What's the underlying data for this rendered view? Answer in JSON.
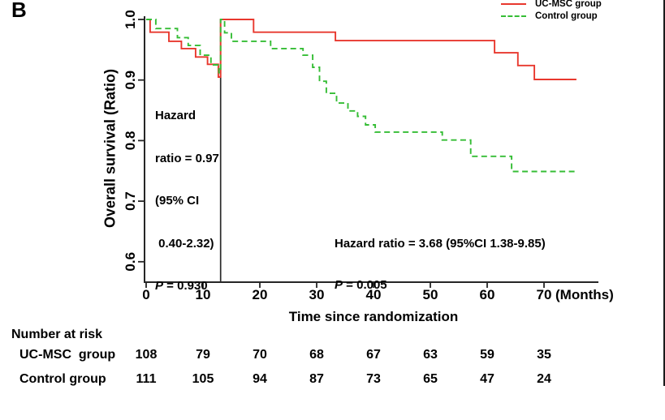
{
  "panel": {
    "label": "B"
  },
  "chart_data": {
    "type": "line",
    "subtype": "kaplan-meier-step",
    "title": "",
    "xlabel": "Time since randomization",
    "x_unit": "(Months)",
    "ylabel": "Overall survival (Ratio)",
    "xticks": [
      0,
      10,
      20,
      30,
      40,
      50,
      60,
      70
    ],
    "yticks": [
      1.0,
      0.9,
      0.8,
      0.7,
      0.6
    ],
    "ytick_labels": [
      "1.0",
      "0.9",
      "0.8",
      "0.7",
      "0.6"
    ],
    "xlim": [
      0,
      79
    ],
    "ylim": [
      0.565,
      1.0
    ],
    "grid": false,
    "legend_position": "top-right",
    "landmark_month": 13.1,
    "series": [
      {
        "name": "UC-MSC group",
        "color": "#e8382e",
        "line_style": "solid",
        "points": [
          [
            0,
            1.0
          ],
          [
            0.7,
            0.979
          ],
          [
            4.0,
            0.964
          ],
          [
            6.2,
            0.952
          ],
          [
            8.7,
            0.938
          ],
          [
            10.8,
            0.926
          ],
          [
            12.7,
            0.905
          ],
          [
            13.1,
            1.0
          ],
          [
            18.9,
            0.979
          ],
          [
            33.3,
            0.965
          ],
          [
            61.3,
            0.945
          ],
          [
            65.4,
            0.924
          ],
          [
            68.3,
            0.901
          ],
          [
            75.7,
            0.901
          ]
        ]
      },
      {
        "name": "Control group",
        "color": "#35bd35",
        "line_style": "dashed",
        "points": [
          [
            0,
            1.0
          ],
          [
            1.7,
            0.985
          ],
          [
            5.5,
            0.97
          ],
          [
            7.4,
            0.957
          ],
          [
            9.5,
            0.941
          ],
          [
            11.4,
            0.925
          ],
          [
            12.8,
            0.912
          ],
          [
            13.1,
            1.0
          ],
          [
            13.8,
            0.978
          ],
          [
            15.0,
            0.964
          ],
          [
            21.9,
            0.952
          ],
          [
            27.6,
            0.941
          ],
          [
            29.3,
            0.921
          ],
          [
            30.5,
            0.898
          ],
          [
            31.7,
            0.878
          ],
          [
            33.5,
            0.862
          ],
          [
            35.5,
            0.849
          ],
          [
            37.2,
            0.84
          ],
          [
            38.6,
            0.826
          ],
          [
            40.3,
            0.814
          ],
          [
            52.1,
            0.801
          ],
          [
            57.1,
            0.774
          ],
          [
            64.3,
            0.749
          ],
          [
            75.5,
            0.749
          ]
        ]
      }
    ],
    "annotations": [
      {
        "lines": [
          "Hazard",
          "ratio = 0.97",
          "(95% CI",
          " 0.40-2.32)"
        ],
        "p_label": "P",
        "p_value": " = 0.930"
      },
      {
        "line": "Hazard ratio = 3.68 (95%CI 1.38-9.85)",
        "p_label": "P",
        "p_value": " = 0.005"
      }
    ]
  },
  "number_at_risk": {
    "title": "Number at risk",
    "rows": [
      {
        "label": "UC-MSC  group",
        "values": [
          108,
          79,
          70,
          68,
          67,
          63,
          59,
          35
        ]
      },
      {
        "label": "Control group",
        "values": [
          111,
          105,
          94,
          87,
          73,
          65,
          47,
          24
        ]
      }
    ]
  }
}
